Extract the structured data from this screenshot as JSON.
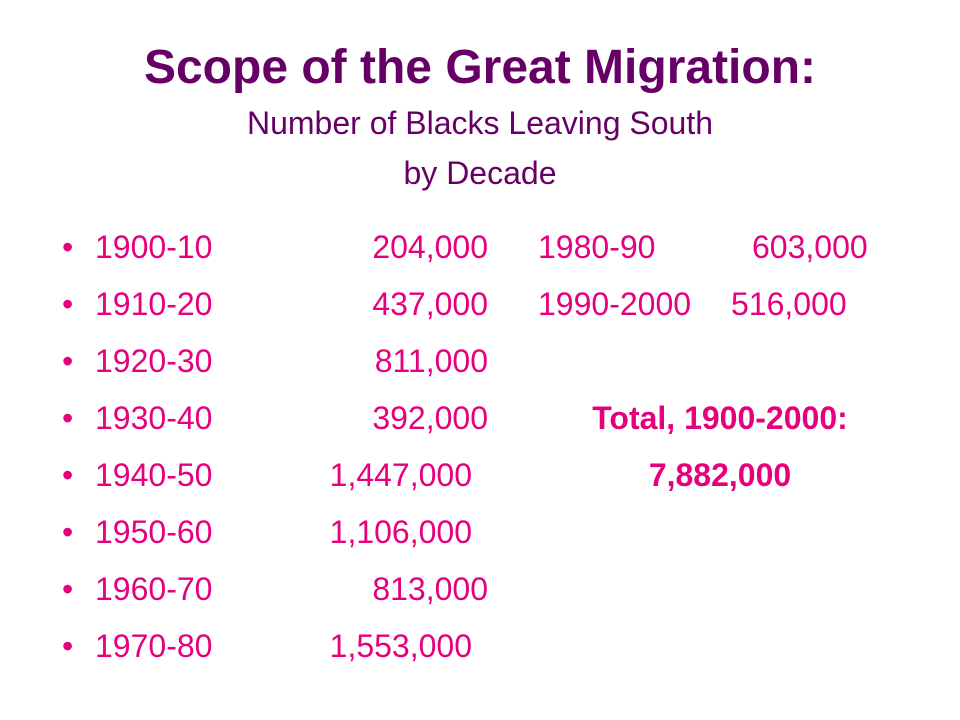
{
  "title": {
    "main": "Scope of the Great Migration:",
    "sub_line1": "Number of Blacks Leaving South",
    "sub_line2": "by Decade"
  },
  "bullet_glyph": "•",
  "left_rows": [
    {
      "period": "1900-10",
      "count": "204,000"
    },
    {
      "period": "1910-20",
      "count": "437,000"
    },
    {
      "period": "1920-30",
      "count": "811,000"
    },
    {
      "period": "1930-40",
      "count": "392,000"
    },
    {
      "period": "1940-50",
      "count": "1,447,000"
    },
    {
      "period": "1950-60",
      "count": "1,106,000"
    },
    {
      "period": "1960-70",
      "count": "813,000"
    },
    {
      "period": "1970-80",
      "count": "1,553,000"
    }
  ],
  "right_rows": [
    {
      "period": "1980-90",
      "count": "603,000"
    },
    {
      "period": "1990-2000",
      "count": "516,000"
    }
  ],
  "total": {
    "label": "Total, 1900-2000:",
    "value": "7,882,000"
  },
  "colors": {
    "title": "#660066",
    "body": "#e6007e",
    "background": "#ffffff"
  }
}
